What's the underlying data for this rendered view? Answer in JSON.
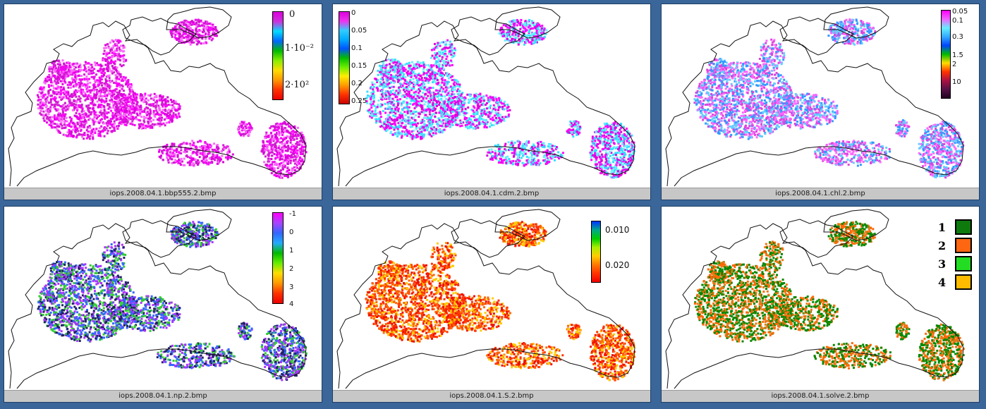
{
  "panels": [
    {
      "caption": "iops.2008.04.1.bbp555.2.bmp",
      "palette": [
        "#ff00ff",
        "#dd00dd",
        "#cc22cc",
        "#ff66ff"
      ],
      "legend": {
        "type": "colorbar",
        "stops": [
          "#dd00dd",
          "#cc33dd",
          "#00ddff",
          "#0066ff",
          "#00bb00",
          "#88ee00",
          "#ffdd00",
          "#ff9900",
          "#ff3300",
          "#ee0000"
        ],
        "ticks": [
          "0",
          "1·10⁻²",
          "2·10²"
        ]
      }
    },
    {
      "caption": "iops.2008.04.1.cdm.2.bmp",
      "palette": [
        "#ff00ff",
        "#33ddff",
        "#dd00dd",
        "#66eeff"
      ],
      "legend": {
        "type": "colorbar",
        "stops": [
          "#dd00dd",
          "#ee33ee",
          "#33ccff",
          "#00aaff",
          "#0055ff",
          "#00bb00",
          "#66ee00",
          "#ffee00",
          "#ff9900",
          "#ff3300",
          "#cc0000"
        ],
        "ticks": [
          "0",
          "0.05",
          "0.1",
          "0.15",
          "0.2",
          "0.25"
        ]
      }
    },
    {
      "caption": "iops.2008.04.1.chl.2.bmp",
      "palette": [
        "#66ccff",
        "#ff66ff",
        "#3399ff",
        "#dd44dd"
      ],
      "legend": {
        "type": "colorbar",
        "stops": [
          "#ff00ff",
          "#ee66ff",
          "#66eeff",
          "#33aaff",
          "#0044ff",
          "#00bb00",
          "#ffdd00",
          "#ff3300",
          "#aa1144",
          "#551144",
          "#220022"
        ],
        "ticks": [
          "0.05",
          "0.1",
          "0.3",
          "1.5",
          "2",
          "10"
        ]
      }
    },
    {
      "caption": "iops.2008.04.1.np.2.bmp",
      "palette": [
        "#3366ff",
        "#aa33ff",
        "#33cc33",
        "#222266"
      ],
      "legend": {
        "type": "colorbar",
        "stops": [
          "#ff00ff",
          "#aa44ff",
          "#3366ff",
          "#22aaff",
          "#00bb00",
          "#66ee00",
          "#ffdd00",
          "#ff9900",
          "#ff3300",
          "#ee0000"
        ],
        "ticks": [
          "-1",
          "0",
          "1",
          "2",
          "3",
          "4"
        ]
      }
    },
    {
      "caption": "iops.2008.04.1.S.2.bmp",
      "palette": [
        "#ff3300",
        "#ff6600",
        "#ffcc00",
        "#ee1100"
      ],
      "legend": {
        "type": "colorbar",
        "stops": [
          "#0033ff",
          "#00aa88",
          "#00cc00",
          "#aaee00",
          "#ffcc00",
          "#ff7700",
          "#ff3300",
          "#ee0000"
        ],
        "ticks": [
          "0.010",
          "0.020"
        ]
      }
    },
    {
      "caption": "iops.2008.04.1.solve.2.bmp",
      "palette": [
        "#118800",
        "#ff6600",
        "#008800",
        "#ee7711"
      ],
      "legend": {
        "type": "classes",
        "classes": [
          {
            "label": "1",
            "color": "#0e7a0e"
          },
          {
            "label": "2",
            "color": "#ff6611"
          },
          {
            "label": "3",
            "color": "#22dd22"
          },
          {
            "label": "4",
            "color": "#ffbb00"
          }
        ]
      }
    }
  ]
}
